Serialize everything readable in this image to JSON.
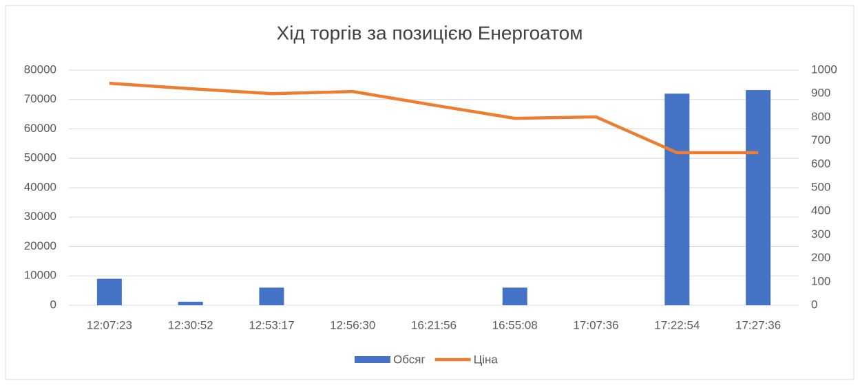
{
  "chart_data": {
    "type": "bar-line",
    "title": "Хід торгів за позицією Енергоатом",
    "categories": [
      "12:07:23",
      "12:30:52",
      "12:53:17",
      "12:56:30",
      "16:21:56",
      "16:55:08",
      "17:07:36",
      "17:22:54",
      "17:27:36"
    ],
    "series": [
      {
        "name": "Обсяг",
        "type": "bar",
        "color": "#4472c4",
        "values": [
          9000,
          1200,
          6000,
          0,
          0,
          6000,
          0,
          72000,
          73200
        ]
      },
      {
        "name": "Ціна",
        "type": "line",
        "axis": "y2",
        "color": "#ed7d31",
        "values": [
          944,
          921,
          900,
          909,
          851,
          795,
          801,
          649,
          649
        ]
      }
    ],
    "ylim": [
      0,
      80000
    ],
    "yticks": [
      0,
      10000,
      20000,
      30000,
      40000,
      50000,
      60000,
      70000,
      80000
    ],
    "y2lim": [
      0,
      1000
    ],
    "y2ticks": [
      0,
      100,
      200,
      300,
      400,
      500,
      600,
      700,
      800,
      900,
      1000
    ],
    "grid": true,
    "legend": "bottom"
  }
}
